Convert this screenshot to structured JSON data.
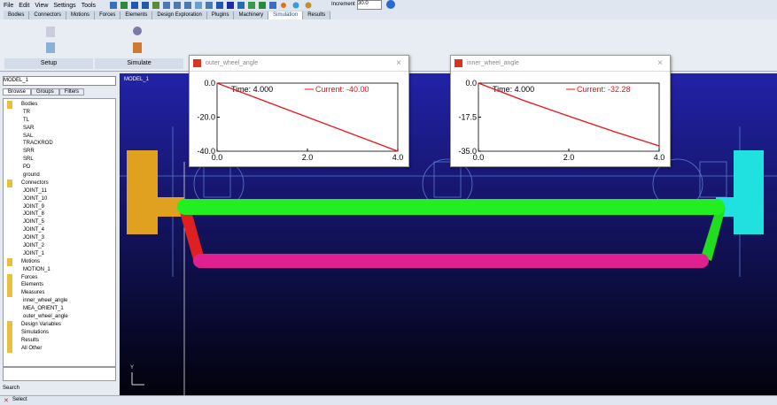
{
  "menu": [
    "File",
    "Edit",
    "View",
    "Settings",
    "Tools"
  ],
  "toolbar": {
    "increment_label": "Increment",
    "increment_value": "30.0"
  },
  "tabs": [
    "Bodies",
    "Connectors",
    "Motions",
    "Forces",
    "Elements",
    "Design Exploration",
    "Plugins",
    "Machinery",
    "Simulation",
    "Results"
  ],
  "active_tab": "Simulation",
  "ribbon": [
    "Setup",
    "Simulate"
  ],
  "browser": {
    "model": "MODEL_1",
    "tabs": [
      "Browse",
      "Groups",
      "Filters"
    ],
    "tree": [
      {
        "label": "Bodies",
        "children": [
          "TR",
          "TL",
          "SAR",
          "SAL",
          "TRACKROD",
          "SRR",
          "SRL",
          "PD",
          "ground"
        ]
      },
      {
        "label": "Connectors",
        "children": [
          "JOINT_11",
          "JOINT_10",
          "JOINT_9",
          "JOINT_8",
          "JOINT_5",
          "JOINT_4",
          "JOINT_3",
          "JOINT_2",
          "JOINT_1"
        ]
      },
      {
        "label": "Motions",
        "children": [
          "MOTION_1"
        ]
      },
      {
        "label": "Forces",
        "children": []
      },
      {
        "label": "Elements",
        "children": []
      },
      {
        "label": "Measures",
        "children": [
          "inner_wheel_angle",
          "MEA_ORIENT_1",
          "outer_wheel_angle"
        ]
      },
      {
        "label": "Design Variables",
        "children": []
      },
      {
        "label": "Simulations",
        "children": []
      },
      {
        "label": "Results",
        "children": []
      },
      {
        "label": "All Other",
        "children": []
      }
    ],
    "search": "Search"
  },
  "viewport_label": "MODEL_1",
  "status": "Select",
  "chart_data": [
    {
      "type": "line",
      "title": "outer_wheel_angle",
      "time_label": "Time: 4.000",
      "x": [
        0,
        4
      ],
      "series": [
        {
          "name": "Current: -40.00",
          "color": "#ee1111",
          "values": [
            0,
            -40
          ]
        }
      ],
      "xlim": [
        0,
        4
      ],
      "ylim": [
        -40,
        0
      ],
      "xticks": [
        {
          "value": 0,
          "label": "0.0"
        },
        {
          "value": 2,
          "label": "2.0"
        },
        {
          "value": 4,
          "label": "4.0"
        }
      ],
      "yticks": [
        {
          "value": 0,
          "label": "0.0"
        },
        {
          "value": -20,
          "label": "-20.0"
        },
        {
          "value": -40,
          "label": "-40.0"
        }
      ]
    },
    {
      "type": "line",
      "title": "inner_wheel_angle",
      "time_label": "Time: 4.000",
      "x": [
        0,
        1,
        2,
        3,
        4
      ],
      "series": [
        {
          "name": "Current: -32.28",
          "color": "#ee1111",
          "values": [
            0,
            -8.9,
            -17,
            -24.9,
            -32.28
          ]
        }
      ],
      "xlim": [
        0,
        4
      ],
      "ylim": [
        -35,
        0
      ],
      "xticks": [
        {
          "value": 0,
          "label": "0.0"
        },
        {
          "value": 2,
          "label": "2.0"
        },
        {
          "value": 4,
          "label": "4.0"
        }
      ],
      "yticks": [
        {
          "value": 0,
          "label": "0.0"
        },
        {
          "value": -17.5,
          "label": "-17.5"
        },
        {
          "value": -35,
          "label": "-35.0"
        }
      ]
    }
  ]
}
